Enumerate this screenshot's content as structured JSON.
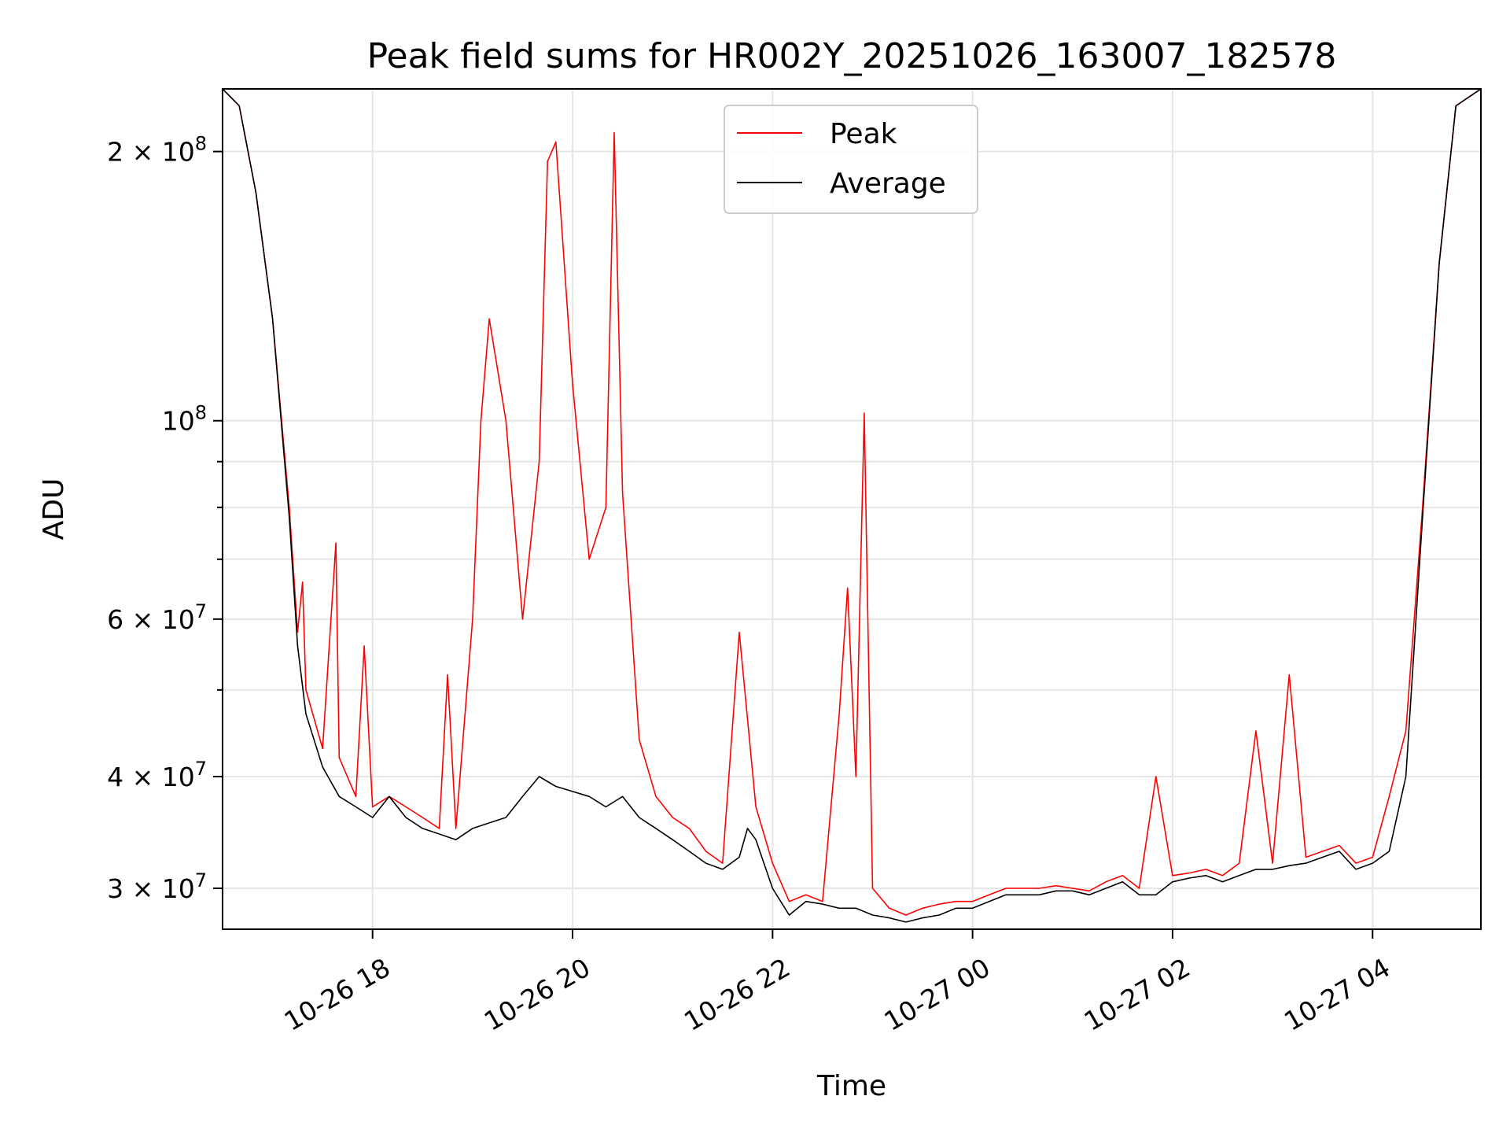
{
  "chart_data": {
    "type": "line",
    "title": "Peak field sums for HR002Y_20251026_163007_182578",
    "xlabel": "Time",
    "ylabel": "ADU",
    "yscale": "log",
    "grid": true,
    "legend_position": "top-center",
    "xlim": [
      "2025-10-26 16:30",
      "2025-10-27 05:05"
    ],
    "ylim": [
      27000000,
      235000000
    ],
    "x_ticks": [
      {
        "t": "2025-10-26 18:00",
        "label": "10-26 18"
      },
      {
        "t": "2025-10-26 20:00",
        "label": "10-26 20"
      },
      {
        "t": "2025-10-26 22:00",
        "label": "10-26 22"
      },
      {
        "t": "2025-10-27 00:00",
        "label": "10-27 00"
      },
      {
        "t": "2025-10-27 02:00",
        "label": "10-27 02"
      },
      {
        "t": "2025-10-27 04:00",
        "label": "10-27 04"
      }
    ],
    "y_ticks": [
      {
        "value": 30000000,
        "mantissa": "3",
        "exp": "7"
      },
      {
        "value": 40000000,
        "mantissa": "4",
        "exp": "7"
      },
      {
        "value": 60000000,
        "mantissa": "6",
        "exp": "7"
      },
      {
        "value": 100000000,
        "mantissa": "",
        "exp": "8"
      },
      {
        "value": 200000000,
        "mantissa": "2",
        "exp": "8"
      }
    ],
    "y_minor_ticks": [
      50000000,
      70000000,
      80000000,
      90000000
    ],
    "series": [
      {
        "name": "Peak",
        "color": "#ff0000",
        "points": [
          [
            "2025-10-26 16:30",
            235000000
          ],
          [
            "2025-10-26 16:40",
            225000000
          ],
          [
            "2025-10-26 16:50",
            180000000
          ],
          [
            "2025-10-26 17:00",
            130000000
          ],
          [
            "2025-10-26 17:10",
            80000000
          ],
          [
            "2025-10-26 17:15",
            58000000
          ],
          [
            "2025-10-26 17:18",
            66000000
          ],
          [
            "2025-10-26 17:20",
            50000000
          ],
          [
            "2025-10-26 17:30",
            43000000
          ],
          [
            "2025-10-26 17:38",
            73000000
          ],
          [
            "2025-10-26 17:40",
            42000000
          ],
          [
            "2025-10-26 17:50",
            38000000
          ],
          [
            "2025-10-26 17:55",
            56000000
          ],
          [
            "2025-10-26 18:00",
            37000000
          ],
          [
            "2025-10-26 18:10",
            38000000
          ],
          [
            "2025-10-26 18:20",
            37000000
          ],
          [
            "2025-10-26 18:30",
            36000000
          ],
          [
            "2025-10-26 18:40",
            35000000
          ],
          [
            "2025-10-26 18:45",
            52000000
          ],
          [
            "2025-10-26 18:50",
            35000000
          ],
          [
            "2025-10-26 19:00",
            60000000
          ],
          [
            "2025-10-26 19:05",
            100000000
          ],
          [
            "2025-10-26 19:10",
            130000000
          ],
          [
            "2025-10-26 19:20",
            100000000
          ],
          [
            "2025-10-26 19:30",
            60000000
          ],
          [
            "2025-10-26 19:40",
            90000000
          ],
          [
            "2025-10-26 19:45",
            195000000
          ],
          [
            "2025-10-26 19:50",
            205000000
          ],
          [
            "2025-10-26 20:00",
            110000000
          ],
          [
            "2025-10-26 20:10",
            70000000
          ],
          [
            "2025-10-26 20:20",
            80000000
          ],
          [
            "2025-10-26 20:25",
            210000000
          ],
          [
            "2025-10-26 20:30",
            83000000
          ],
          [
            "2025-10-26 20:40",
            44000000
          ],
          [
            "2025-10-26 20:50",
            38000000
          ],
          [
            "2025-10-26 21:00",
            36000000
          ],
          [
            "2025-10-26 21:10",
            35000000
          ],
          [
            "2025-10-26 21:20",
            33000000
          ],
          [
            "2025-10-26 21:30",
            32000000
          ],
          [
            "2025-10-26 21:40",
            58000000
          ],
          [
            "2025-10-26 21:50",
            37000000
          ],
          [
            "2025-10-26 22:00",
            32000000
          ],
          [
            "2025-10-26 22:10",
            29000000
          ],
          [
            "2025-10-26 22:20",
            29500000
          ],
          [
            "2025-10-26 22:30",
            29000000
          ],
          [
            "2025-10-26 22:40",
            47000000
          ],
          [
            "2025-10-26 22:45",
            65000000
          ],
          [
            "2025-10-26 22:50",
            40000000
          ],
          [
            "2025-10-26 22:55",
            102000000
          ],
          [
            "2025-10-26 23:00",
            30000000
          ],
          [
            "2025-10-26 23:10",
            28500000
          ],
          [
            "2025-10-26 23:20",
            28000000
          ],
          [
            "2025-10-26 23:30",
            28500000
          ],
          [
            "2025-10-26 23:40",
            28800000
          ],
          [
            "2025-10-26 23:50",
            29000000
          ],
          [
            "2025-10-27 00:00",
            29000000
          ],
          [
            "2025-10-27 00:10",
            29500000
          ],
          [
            "2025-10-27 00:20",
            30000000
          ],
          [
            "2025-10-27 00:30",
            30000000
          ],
          [
            "2025-10-27 00:40",
            30000000
          ],
          [
            "2025-10-27 00:50",
            30200000
          ],
          [
            "2025-10-27 01:00",
            30000000
          ],
          [
            "2025-10-27 01:10",
            29800000
          ],
          [
            "2025-10-27 01:20",
            30500000
          ],
          [
            "2025-10-27 01:30",
            31000000
          ],
          [
            "2025-10-27 01:40",
            30000000
          ],
          [
            "2025-10-27 01:50",
            40000000
          ],
          [
            "2025-10-27 02:00",
            31000000
          ],
          [
            "2025-10-27 02:10",
            31200000
          ],
          [
            "2025-10-27 02:20",
            31500000
          ],
          [
            "2025-10-27 02:30",
            31000000
          ],
          [
            "2025-10-27 02:40",
            32000000
          ],
          [
            "2025-10-27 02:50",
            45000000
          ],
          [
            "2025-10-27 03:00",
            32000000
          ],
          [
            "2025-10-27 03:10",
            52000000
          ],
          [
            "2025-10-27 03:20",
            32500000
          ],
          [
            "2025-10-27 03:30",
            33000000
          ],
          [
            "2025-10-27 03:40",
            33500000
          ],
          [
            "2025-10-27 03:50",
            32000000
          ],
          [
            "2025-10-27 04:00",
            32500000
          ],
          [
            "2025-10-27 04:10",
            38000000
          ],
          [
            "2025-10-27 04:20",
            45000000
          ],
          [
            "2025-10-27 04:30",
            80000000
          ],
          [
            "2025-10-27 04:40",
            150000000
          ],
          [
            "2025-10-27 04:50",
            225000000
          ],
          [
            "2025-10-27 05:05",
            235000000
          ]
        ]
      },
      {
        "name": "Average",
        "color": "#000000",
        "points": [
          [
            "2025-10-26 16:30",
            235000000
          ],
          [
            "2025-10-26 16:40",
            225000000
          ],
          [
            "2025-10-26 16:50",
            180000000
          ],
          [
            "2025-10-26 17:00",
            130000000
          ],
          [
            "2025-10-26 17:10",
            78000000
          ],
          [
            "2025-10-26 17:15",
            56000000
          ],
          [
            "2025-10-26 17:20",
            47000000
          ],
          [
            "2025-10-26 17:30",
            41000000
          ],
          [
            "2025-10-26 17:40",
            38000000
          ],
          [
            "2025-10-26 17:50",
            37000000
          ],
          [
            "2025-10-26 18:00",
            36000000
          ],
          [
            "2025-10-26 18:10",
            38000000
          ],
          [
            "2025-10-26 18:20",
            36000000
          ],
          [
            "2025-10-26 18:30",
            35000000
          ],
          [
            "2025-10-26 18:40",
            34500000
          ],
          [
            "2025-10-26 18:50",
            34000000
          ],
          [
            "2025-10-26 19:00",
            35000000
          ],
          [
            "2025-10-26 19:10",
            35500000
          ],
          [
            "2025-10-26 19:20",
            36000000
          ],
          [
            "2025-10-26 19:30",
            38000000
          ],
          [
            "2025-10-26 19:40",
            40000000
          ],
          [
            "2025-10-26 19:50",
            39000000
          ],
          [
            "2025-10-26 20:00",
            38500000
          ],
          [
            "2025-10-26 20:10",
            38000000
          ],
          [
            "2025-10-26 20:20",
            37000000
          ],
          [
            "2025-10-26 20:30",
            38000000
          ],
          [
            "2025-10-26 20:40",
            36000000
          ],
          [
            "2025-10-26 20:50",
            35000000
          ],
          [
            "2025-10-26 21:00",
            34000000
          ],
          [
            "2025-10-26 21:10",
            33000000
          ],
          [
            "2025-10-26 21:20",
            32000000
          ],
          [
            "2025-10-26 21:30",
            31500000
          ],
          [
            "2025-10-26 21:40",
            32500000
          ],
          [
            "2025-10-26 21:45",
            35000000
          ],
          [
            "2025-10-26 21:50",
            34000000
          ],
          [
            "2025-10-26 22:00",
            30000000
          ],
          [
            "2025-10-26 22:10",
            28000000
          ],
          [
            "2025-10-26 22:20",
            29000000
          ],
          [
            "2025-10-26 22:30",
            28800000
          ],
          [
            "2025-10-26 22:40",
            28500000
          ],
          [
            "2025-10-26 22:50",
            28500000
          ],
          [
            "2025-10-26 23:00",
            28000000
          ],
          [
            "2025-10-26 23:10",
            27800000
          ],
          [
            "2025-10-26 23:20",
            27500000
          ],
          [
            "2025-10-26 23:30",
            27800000
          ],
          [
            "2025-10-26 23:40",
            28000000
          ],
          [
            "2025-10-26 23:50",
            28500000
          ],
          [
            "2025-10-27 00:00",
            28500000
          ],
          [
            "2025-10-27 00:10",
            29000000
          ],
          [
            "2025-10-27 00:20",
            29500000
          ],
          [
            "2025-10-27 00:30",
            29500000
          ],
          [
            "2025-10-27 00:40",
            29500000
          ],
          [
            "2025-10-27 00:50",
            29800000
          ],
          [
            "2025-10-27 01:00",
            29800000
          ],
          [
            "2025-10-27 01:10",
            29500000
          ],
          [
            "2025-10-27 01:20",
            30000000
          ],
          [
            "2025-10-27 01:30",
            30500000
          ],
          [
            "2025-10-27 01:40",
            29500000
          ],
          [
            "2025-10-27 01:50",
            29500000
          ],
          [
            "2025-10-27 02:00",
            30500000
          ],
          [
            "2025-10-27 02:10",
            30800000
          ],
          [
            "2025-10-27 02:20",
            31000000
          ],
          [
            "2025-10-27 02:30",
            30500000
          ],
          [
            "2025-10-27 02:40",
            31000000
          ],
          [
            "2025-10-27 02:50",
            31500000
          ],
          [
            "2025-10-27 03:00",
            31500000
          ],
          [
            "2025-10-27 03:10",
            31800000
          ],
          [
            "2025-10-27 03:20",
            32000000
          ],
          [
            "2025-10-27 03:30",
            32500000
          ],
          [
            "2025-10-27 03:40",
            33000000
          ],
          [
            "2025-10-27 03:50",
            31500000
          ],
          [
            "2025-10-27 04:00",
            32000000
          ],
          [
            "2025-10-27 04:10",
            33000000
          ],
          [
            "2025-10-27 04:20",
            40000000
          ],
          [
            "2025-10-27 04:30",
            78000000
          ],
          [
            "2025-10-27 04:40",
            150000000
          ],
          [
            "2025-10-27 04:50",
            225000000
          ],
          [
            "2025-10-27 05:05",
            235000000
          ]
        ]
      }
    ]
  }
}
